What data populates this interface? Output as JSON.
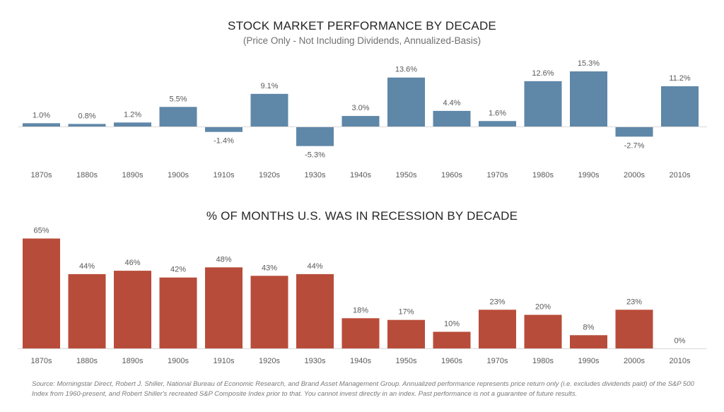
{
  "chart_data": [
    {
      "type": "bar",
      "title": "STOCK MARKET PERFORMANCE BY DECADE",
      "subtitle": "(Price Only - Not Including Dividends, Annualized-Basis)",
      "categories": [
        "1870s",
        "1880s",
        "1890s",
        "1900s",
        "1910s",
        "1920s",
        "1930s",
        "1940s",
        "1950s",
        "1960s",
        "1970s",
        "1980s",
        "1990s",
        "2000s",
        "2010s"
      ],
      "values": [
        1.0,
        0.8,
        1.2,
        5.5,
        -1.4,
        9.1,
        -5.3,
        3.0,
        13.6,
        4.4,
        1.6,
        12.6,
        15.3,
        -2.7,
        11.2
      ],
      "data_labels": [
        "1.0%",
        "0.8%",
        "1.2%",
        "5.5%",
        "-1.4%",
        "9.1%",
        "-5.3%",
        "3.0%",
        "13.6%",
        "4.4%",
        "1.6%",
        "12.6%",
        "15.3%",
        "-2.7%",
        "11.2%"
      ],
      "unit": "%",
      "color": "#5f87a8",
      "grid": false
    },
    {
      "type": "bar",
      "title": "% OF MONTHS U.S. WAS IN RECESSION BY DECADE",
      "categories": [
        "1870s",
        "1880s",
        "1890s",
        "1900s",
        "1910s",
        "1920s",
        "1930s",
        "1940s",
        "1950s",
        "1960s",
        "1970s",
        "1980s",
        "1990s",
        "2000s",
        "2010s"
      ],
      "values": [
        65,
        44,
        46,
        42,
        48,
        43,
        44,
        18,
        17,
        10,
        23,
        20,
        8,
        23,
        0
      ],
      "data_labels": [
        "65%",
        "44%",
        "46%",
        "42%",
        "48%",
        "43%",
        "44%",
        "18%",
        "17%",
        "10%",
        "23%",
        "20%",
        "8%",
        "23%",
        "0%"
      ],
      "unit": "%",
      "color": "#b84c3a",
      "grid": false
    }
  ],
  "footer": "Source: Morningstar Direct, Robert J. Shiller, National Bureau of Economic Research, and Brand Asset Management Group. Annualized performance represents price return only (i.e. excludes dividends paid) of the S&P 500 Index from 1960-present, and Robert Shiller's recreated S&P Composite Index prior to that. You cannot invest directly in an index. Past performance is not a guarantee of future results."
}
